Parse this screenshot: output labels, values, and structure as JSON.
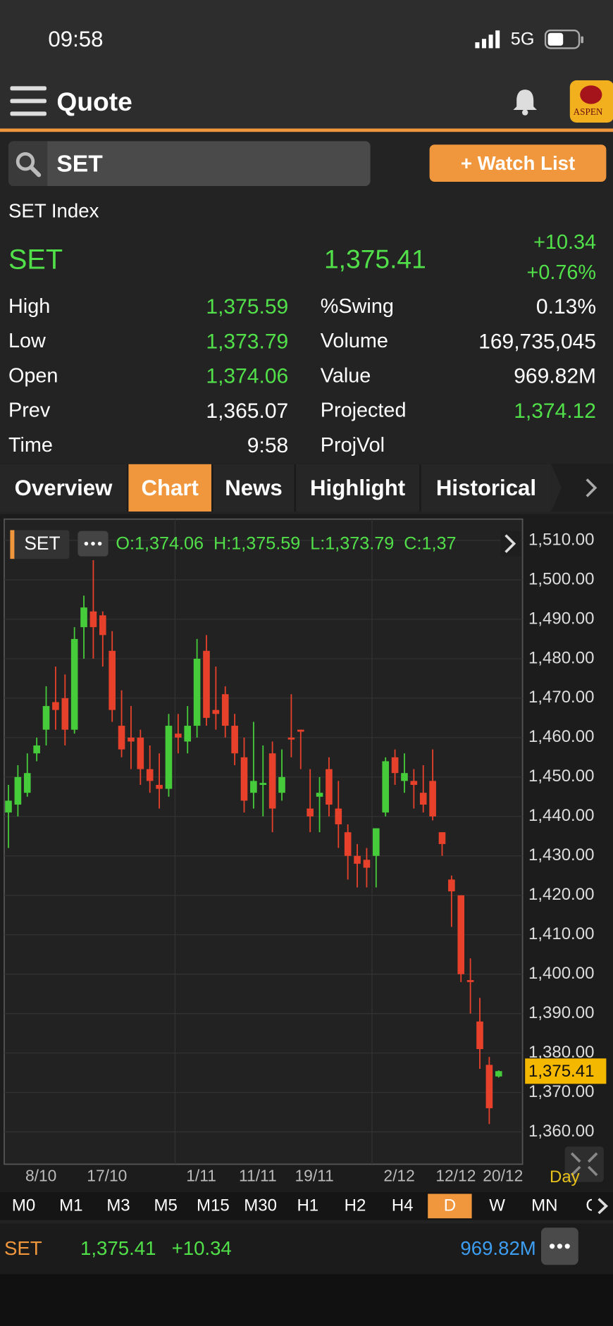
{
  "status": {
    "time": "09:58",
    "network": "5G"
  },
  "header": {
    "title": "Quote",
    "logo": "ASPEN"
  },
  "search": {
    "query": "SET",
    "button": "+ Watch List"
  },
  "quote": {
    "name": "SET Index",
    "symbol": "SET",
    "last": "1,375.41",
    "change": "+10.34",
    "change_pct": "+0.76%",
    "left": [
      {
        "label": "High",
        "value": "1,375.59",
        "up": true
      },
      {
        "label": "Low",
        "value": "1,373.79",
        "up": true
      },
      {
        "label": "Open",
        "value": "1,374.06",
        "up": true
      },
      {
        "label": "Prev",
        "value": "1,365.07",
        "up": false
      },
      {
        "label": "Time",
        "value": "9:58",
        "up": false
      }
    ],
    "right": [
      {
        "label": "%Swing",
        "value": "0.13%",
        "up": false
      },
      {
        "label": "Volume",
        "value": "169,735,045",
        "up": false
      },
      {
        "label": "Value",
        "value": "969.82M",
        "up": false
      },
      {
        "label": "Projected",
        "value": "1,374.12",
        "up": true
      },
      {
        "label": "ProjVol"
      }
    ]
  },
  "tabs": [
    "Overview",
    "Chart",
    "News",
    "Highlight",
    "Historical"
  ],
  "active_tab": 1,
  "chart_data": {
    "type": "candlestick",
    "symbol": "SET",
    "ohlc_text": "O:1,374.06  H:1,375.59  L:1,373.79  C:1,37",
    "period_label": "Day",
    "up_color": "#46cc3a",
    "down_color": "#e8412b",
    "categories": [
      null,
      null,
      null,
      "8/10",
      null,
      null,
      null,
      null,
      null,
      null,
      "17/10",
      null,
      null,
      null,
      null,
      null,
      null,
      null,
      null,
      null,
      "1/11",
      null,
      null,
      null,
      null,
      null,
      "11/11",
      null,
      null,
      null,
      null,
      null,
      "19/11",
      null,
      null,
      null,
      null,
      null,
      null,
      null,
      null,
      "2/12",
      null,
      null,
      null,
      null,
      null,
      "12/12",
      null,
      null,
      null,
      null,
      "20/12"
    ],
    "open": [
      1441,
      1443,
      1446,
      1456,
      1462,
      1469,
      1470,
      1462,
      1488,
      1492,
      1491,
      1482,
      1463,
      1460,
      1460,
      1452,
      1448,
      1447,
      1461,
      1459,
      1463,
      1482,
      1467,
      1471,
      1463,
      1455,
      1446,
      1448,
      1456,
      1446,
      1460,
      1462,
      1442,
      1445,
      1452,
      1442,
      1436,
      1430,
      1429,
      1430,
      1441,
      1455,
      1449,
      1449,
      1446,
      1449,
      1436,
      1424,
      1420,
      1398.5,
      1388,
      1377,
      1374.06
    ],
    "high": [
      1448,
      1453,
      1456,
      1460,
      1473,
      1478,
      1476,
      1488,
      1496,
      1505,
      1492,
      1487,
      1472,
      1468,
      1462,
      1458,
      1456,
      1466,
      1466,
      1468,
      1485,
      1486,
      1478,
      1473,
      1466,
      1460,
      1464,
      1458,
      1459,
      1457,
      1471,
      1462,
      1452,
      1450,
      1455,
      1449,
      1438,
      1433,
      1432,
      1437,
      1455,
      1457,
      1456,
      1452,
      1453,
      1457,
      1436,
      1425,
      1420,
      1404,
      1394,
      1379,
      1375.59
    ],
    "low": [
      1432,
      1440,
      1445,
      1454,
      1458,
      1462,
      1458,
      1461,
      1480,
      1480,
      1478,
      1464,
      1455,
      1452,
      1448,
      1446,
      1442,
      1445,
      1456,
      1456,
      1460,
      1463,
      1462,
      1460,
      1453,
      1441,
      1442,
      1440,
      1436,
      1444,
      1455,
      1452,
      1436,
      1436,
      1440,
      1432,
      1424,
      1422,
      1422,
      1422,
      1440,
      1448,
      1446,
      1442,
      1441,
      1439,
      1430,
      1412,
      1398,
      1390,
      1376,
      1362,
      1373.79
    ],
    "close": [
      1444,
      1450,
      1451,
      1458,
      1468,
      1467,
      1462,
      1485,
      1493,
      1488,
      1486,
      1467,
      1457,
      1459,
      1452,
      1449,
      1447,
      1463,
      1460,
      1463,
      1480,
      1465,
      1466,
      1463,
      1456,
      1444,
      1449,
      1448.5,
      1442,
      1450,
      1459.5,
      1461.5,
      1440,
      1446,
      1443,
      1438,
      1430,
      1428,
      1427,
      1437,
      1454,
      1451,
      1451,
      1448,
      1443,
      1440,
      1433,
      1421,
      1400,
      1398,
      1381,
      1366,
      1375.41
    ],
    "ylim": [
      1351.8,
      1515.4
    ],
    "yticks": [
      {
        "value": 1360,
        "label": "1,360.00"
      },
      {
        "value": 1370,
        "label": "1,370.00"
      },
      {
        "value": 1380,
        "label": "1,380.00"
      },
      {
        "value": 1390,
        "label": "1,390.00"
      },
      {
        "value": 1400,
        "label": "1,400.00"
      },
      {
        "value": 1410,
        "label": "1,410.00"
      },
      {
        "value": 1420,
        "label": "1,420.00"
      },
      {
        "value": 1430,
        "label": "1,430.00"
      },
      {
        "value": 1440,
        "label": "1,440.00"
      },
      {
        "value": 1450,
        "label": "1,450.00"
      },
      {
        "value": 1460,
        "label": "1,460.00"
      },
      {
        "value": 1470,
        "label": "1,470.00"
      },
      {
        "value": 1480,
        "label": "1,480.00"
      },
      {
        "value": 1490,
        "label": "1,490.00"
      },
      {
        "value": 1500,
        "label": "1,500.00"
      },
      {
        "value": 1510,
        "label": "1,510.00"
      }
    ],
    "grid": true,
    "last_price": {
      "value": 1375.41,
      "label": "1,375.41"
    }
  },
  "timeframes": [
    "M0",
    "M1",
    "M3",
    "M5",
    "M15",
    "M30",
    "H1",
    "H2",
    "H4",
    "D",
    "W",
    "MN",
    "C"
  ],
  "active_timeframe": 9,
  "footer": {
    "symbol": "SET",
    "last": "1,375.41",
    "change": "+10.34",
    "value": "969.82M"
  }
}
